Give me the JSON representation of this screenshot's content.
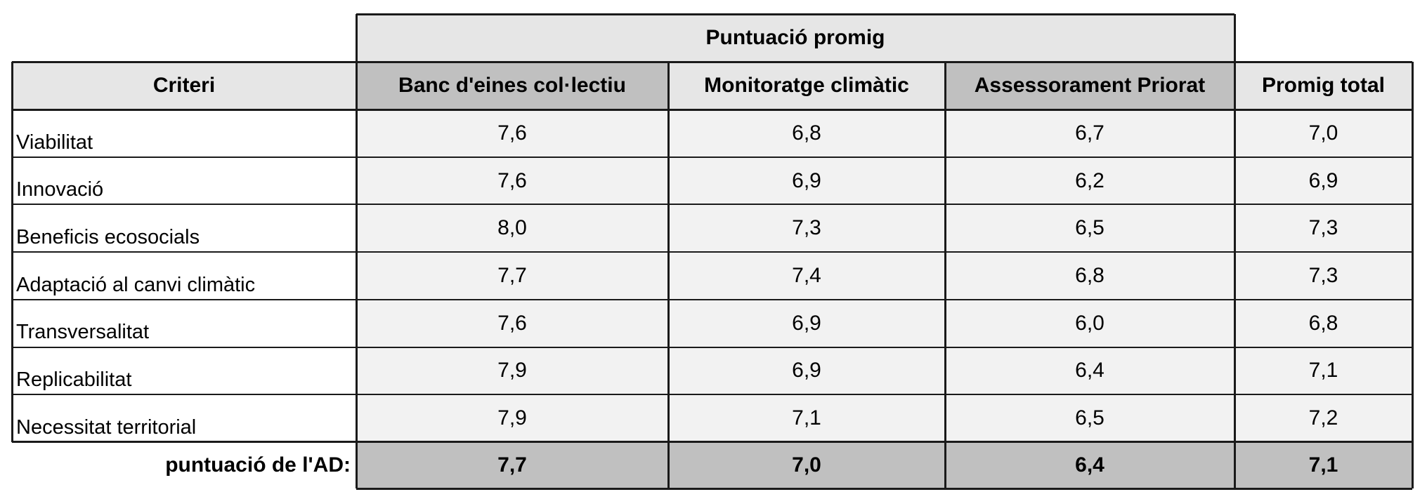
{
  "table": {
    "group_header": "Puntuació promig",
    "headers": [
      "Criteri",
      "Banc d'eines col·lectiu",
      "Monitoratge climàtic",
      "Assessorament Priorat",
      "Promig total"
    ],
    "rows": [
      {
        "criteri": "Viabilitat",
        "banc": "7,6",
        "monitoratge": "6,8",
        "assessorament": "6,7",
        "promig": "7,0"
      },
      {
        "criteri": "Innovació",
        "banc": "7,6",
        "monitoratge": "6,9",
        "assessorament": "6,2",
        "promig": "6,9"
      },
      {
        "criteri": "Beneficis ecosocials",
        "banc": "8,0",
        "monitoratge": "7,3",
        "assessorament": "6,5",
        "promig": "7,3"
      },
      {
        "criteri": "Adaptació al canvi climàtic",
        "banc": "7,7",
        "monitoratge": "7,4",
        "assessorament": "6,8",
        "promig": "7,3"
      },
      {
        "criteri": "Transversalitat",
        "banc": "7,6",
        "monitoratge": "6,9",
        "assessorament": "6,0",
        "promig": "6,8"
      },
      {
        "criteri": "Replicabilitat",
        "banc": "7,9",
        "monitoratge": "6,9",
        "assessorament": "6,4",
        "promig": "7,1"
      },
      {
        "criteri": "Necessitat territorial",
        "banc": "7,9",
        "monitoratge": "7,1",
        "assessorament": "6,5",
        "promig": "7,2"
      }
    ],
    "footer": {
      "label": "puntuació de l'AD:",
      "banc": "7,7",
      "monitoratge": "7,0",
      "assessorament": "6,4",
      "promig": "7,1"
    }
  },
  "colors": {
    "header_light": "#e6e6e6",
    "header_dark": "#c0c0c0",
    "row_bg": "#f2f2f2",
    "footer_bg": "#c0c0c0",
    "border": "#1a1a1a"
  }
}
